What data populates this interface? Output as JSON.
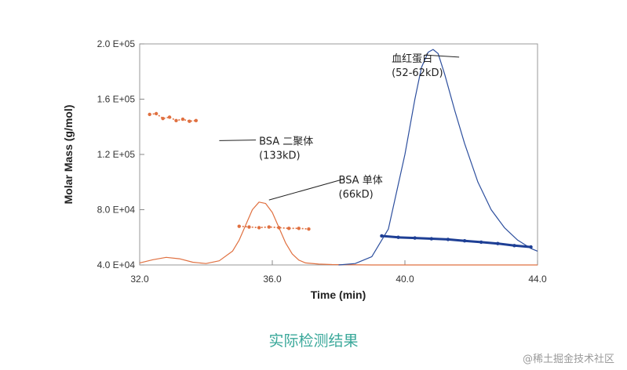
{
  "chart_data": {
    "type": "line",
    "title": "",
    "xlabel": "Time (min)",
    "ylabel": "Molar Mass (g/mol)",
    "xlim": [
      32.0,
      44.0
    ],
    "ylim": [
      40000,
      200000
    ],
    "x_ticks": [
      "32.0",
      "36.0",
      "40.0",
      "44.0"
    ],
    "x_tick_values": [
      32,
      36,
      40,
      44
    ],
    "y_ticks": [
      "4.0 E+04",
      "8.0 E+04",
      "1.2 E+05",
      "1.6 E+05",
      "2.0 E+05"
    ],
    "y_tick_values": [
      40000,
      80000,
      120000,
      160000,
      200000
    ],
    "grid": false,
    "series": [
      {
        "color": "#e07040",
        "x": [
          32.0,
          32.4,
          32.8,
          33.2,
          33.6,
          34.0,
          34.4,
          34.8,
          35.0,
          35.2,
          35.4,
          35.6,
          35.8,
          36.0,
          36.2,
          36.4,
          36.6,
          36.8,
          37.0,
          37.4,
          37.8,
          38.2,
          39.0,
          40.0,
          41.0,
          42.0,
          43.0,
          44.0
        ],
        "values": [
          41500,
          43800,
          45500,
          44500,
          42000,
          41000,
          43000,
          50000,
          58000,
          69000,
          80000,
          85500,
          84500,
          78000,
          67000,
          56000,
          48000,
          43500,
          41500,
          40600,
          40300,
          40200,
          40000,
          40000,
          40000,
          40000,
          40000,
          40000
        ]
      },
      {
        "color": "#2d4f9e",
        "x": [
          38.0,
          38.5,
          39.0,
          39.5,
          40.0,
          40.3,
          40.5,
          40.7,
          40.85,
          41.0,
          41.2,
          41.5,
          41.8,
          42.2,
          42.6,
          43.0,
          43.4,
          43.8,
          44.0
        ],
        "values": [
          40000,
          41000,
          46000,
          66000,
          120000,
          160000,
          183000,
          194000,
          196000,
          193000,
          178000,
          152000,
          128000,
          100000,
          80000,
          67000,
          58000,
          52000,
          50000
        ]
      },
      {
        "color": "#e07040",
        "points": true,
        "x": [
          32.3,
          32.5,
          32.7,
          32.9,
          33.1,
          33.3,
          33.5,
          33.7
        ],
        "values": [
          149000,
          149500,
          146000,
          147000,
          144500,
          145500,
          144000,
          144500
        ]
      },
      {
        "color": "#e07040",
        "points": true,
        "x": [
          35.0,
          35.3,
          35.6,
          35.9,
          36.2,
          36.5,
          36.8,
          37.1
        ],
        "values": [
          68000,
          67500,
          67000,
          67500,
          67000,
          66500,
          66500,
          66000
        ]
      },
      {
        "color": "#1e3f95",
        "points": true,
        "x": [
          39.3,
          39.8,
          40.3,
          40.8,
          41.3,
          41.8,
          42.3,
          42.8,
          43.3,
          43.8
        ],
        "values": [
          61000,
          60000,
          59500,
          59000,
          58500,
          57500,
          56500,
          55500,
          54000,
          53000
        ]
      }
    ],
    "annotations": [
      {
        "lines": [
          "BSA 二聚体",
          "(133kD)"
        ],
        "x": 35.6,
        "y": 127000,
        "arrow_to": [
          34.4,
          130000
        ]
      },
      {
        "lines": [
          "BSA 单体",
          "(66kD)"
        ],
        "x": 38.0,
        "y": 99000,
        "arrow_to": [
          35.9,
          87000
        ]
      },
      {
        "lines": [
          "血红蛋白",
          "(52-62kD)"
        ],
        "x": 39.6,
        "y": 187000,
        "arrow_to": [
          40.6,
          192000
        ]
      }
    ]
  },
  "caption": "实际检测结果",
  "credit": "@稀土掘金技术社区"
}
